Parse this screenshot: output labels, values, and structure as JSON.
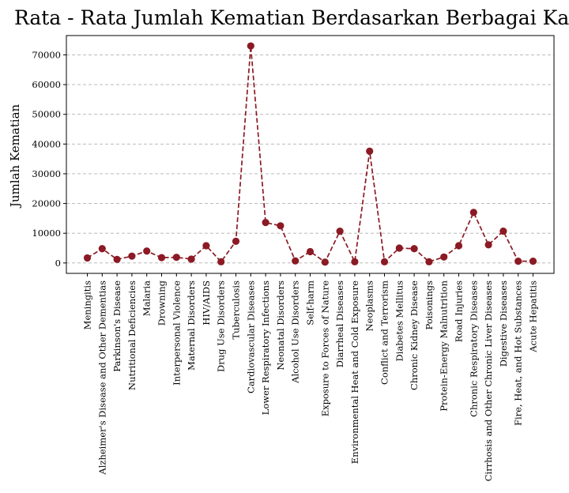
{
  "chart_data": {
    "type": "line",
    "title": "Rata - Rata Jumlah Kematian Berdasarkan Berbagai Kasus",
    "xlabel": "",
    "ylabel": "Jumlah Kematian",
    "ylim": [
      -3500,
      76500
    ],
    "yticks": [
      0,
      10000,
      20000,
      30000,
      40000,
      50000,
      60000,
      70000
    ],
    "grid": "y-only, dashed",
    "line_style": "dashed",
    "marker": "circle",
    "color": "#8b1a24",
    "categories": [
      "Meningitis",
      "Alzheimer's Disease and Other Dementias",
      "Parkinson's Disease",
      "Nutritional Deficiencies",
      "Malaria",
      "Drowning",
      "Interpersonal Violence",
      "Maternal Disorders",
      "HIV/AIDS",
      "Drug Use Disorders",
      "Tuberculosis",
      "Cardiovascular Diseases",
      "Lower Respiratory Infections",
      "Neonatal Disorders",
      "Alcohol Use Disorders",
      "Self-harm",
      "Exposure to Forces of Nature",
      "Diarrheal Diseases",
      "Environmental Heat and Cold Exposure",
      "Neoplasms",
      "Conflict and Terrorism",
      "Diabetes Mellitus",
      "Chronic Kidney Disease",
      "Poisonings",
      "Protein-Energy Malnutrition",
      "Road Injuries",
      "Chronic Respiratory Diseases",
      "Cirrhosis and Other Chronic Liver Diseases",
      "Digestive Diseases",
      "Fire, Heat, and Hot Substances",
      "Acute Hepatitis"
    ],
    "values": [
      1700,
      4800,
      1200,
      2300,
      4000,
      1800,
      1900,
      1300,
      5800,
      400,
      7300,
      73000,
      13600,
      12500,
      700,
      3800,
      300,
      10700,
      400,
      37600,
      400,
      5000,
      4800,
      400,
      2000,
      5800,
      17000,
      6100,
      10700,
      600,
      600
    ]
  }
}
